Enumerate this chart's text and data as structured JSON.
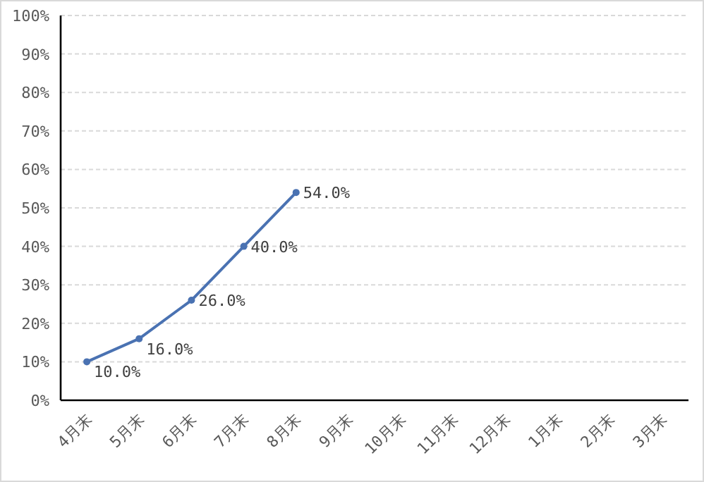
{
  "chart_data": {
    "type": "line",
    "categories": [
      "4月末",
      "5月末",
      "6月末",
      "7月末",
      "8月末",
      "9月末",
      "10月末",
      "11月末",
      "12月末",
      "1月末",
      "2月末",
      "3月末"
    ],
    "values": [
      10.0,
      16.0,
      26.0,
      40.0,
      54.0,
      null,
      null,
      null,
      null,
      null,
      null,
      null
    ],
    "value_labels": [
      "10.0%",
      "16.0%",
      "26.0%",
      "40.0%",
      "54.0%",
      null,
      null,
      null,
      null,
      null,
      null,
      null
    ],
    "color": "#4a72b2",
    "marker": "circle",
    "line_style": "solid",
    "grid": "y",
    "ylim": [
      0,
      100
    ],
    "yticks": [
      {
        "value": 0,
        "label": "0%"
      },
      {
        "value": 10,
        "label": "10%"
      },
      {
        "value": 20,
        "label": "20%"
      },
      {
        "value": 30,
        "label": "30%"
      },
      {
        "value": 40,
        "label": "40%"
      },
      {
        "value": 50,
        "label": "50%"
      },
      {
        "value": 60,
        "label": "60%"
      },
      {
        "value": 70,
        "label": "70%"
      },
      {
        "value": 80,
        "label": "80%"
      },
      {
        "value": 90,
        "label": "90%"
      },
      {
        "value": 100,
        "label": "100%"
      }
    ]
  }
}
